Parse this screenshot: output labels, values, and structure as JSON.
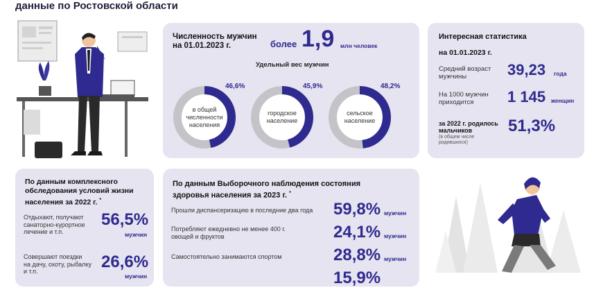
{
  "header": {
    "subtitle": "данные по Ростовской области"
  },
  "men_count": {
    "label": "Численность мужчин\nна 01.01.2023 г.",
    "prefix": "более",
    "value": "1,9",
    "unit": "млн человек",
    "share_title": "Удельный вес мужчин",
    "donuts": [
      {
        "label": "в общей\nчисленности\nнаселения",
        "pct_text": "46,6%",
        "fraction": 0.466
      },
      {
        "label": "городское\nнаселение",
        "pct_text": "45,9%",
        "fraction": 0.459
      },
      {
        "label": "сельское\nнаселение",
        "pct_text": "48,2%",
        "fraction": 0.482
      }
    ]
  },
  "stats": {
    "title": "Интересная статистика",
    "date": "на 01.01.2023 г.",
    "rows": [
      {
        "label": "Средний возраст\nмужчины",
        "value": "39,23",
        "unit": "года"
      },
      {
        "label": "На 1000 мужчин\nприходится",
        "value": "1 145",
        "unit": "женщин"
      }
    ],
    "boys_label": "за 2022 г. родилось\nмальчиков",
    "boys_note": "(в общем числе\nродившихся)",
    "boys_value": "51,3%"
  },
  "survey": {
    "title": "По данным комплексного\nобследования условий жизни\nнаселения за 2022 г.",
    "star": "*",
    "rows": [
      {
        "label": "Отдыхают, получают\nсанаторно-курортное\nлечение и т.п.",
        "value": "56,5%",
        "unit": "мужчин"
      },
      {
        "label": "Совершают поездки\nна дачу, охоту, рыбалку\nи т.п.",
        "value": "26,6%",
        "unit": "мужчин"
      }
    ]
  },
  "health": {
    "title": "По данным  Выборочного наблюдения состояния\nздоровья населения за 2023 г.",
    "star": "*",
    "rows": [
      {
        "label": "Прошли диспансеризацию в последние два года",
        "value": "59,8%",
        "unit": "мужчин"
      },
      {
        "label": "Потребляют ежедневно не менее 400 г.\nовощей и фруктов",
        "value": "24,1%",
        "unit": "мужчин"
      },
      {
        "label": "Самостоятельно занимаются спортом",
        "value": "28,8%",
        "unit": "мужчин"
      },
      {
        "label": "",
        "value": "15,9%",
        "unit": ""
      }
    ]
  },
  "colors": {
    "navy": "#2f2a8f",
    "card": "#e6e4f0",
    "ring_gray": "#c4c4c8"
  },
  "icons": [
    "businessman-illustration",
    "runner-illustration"
  ]
}
